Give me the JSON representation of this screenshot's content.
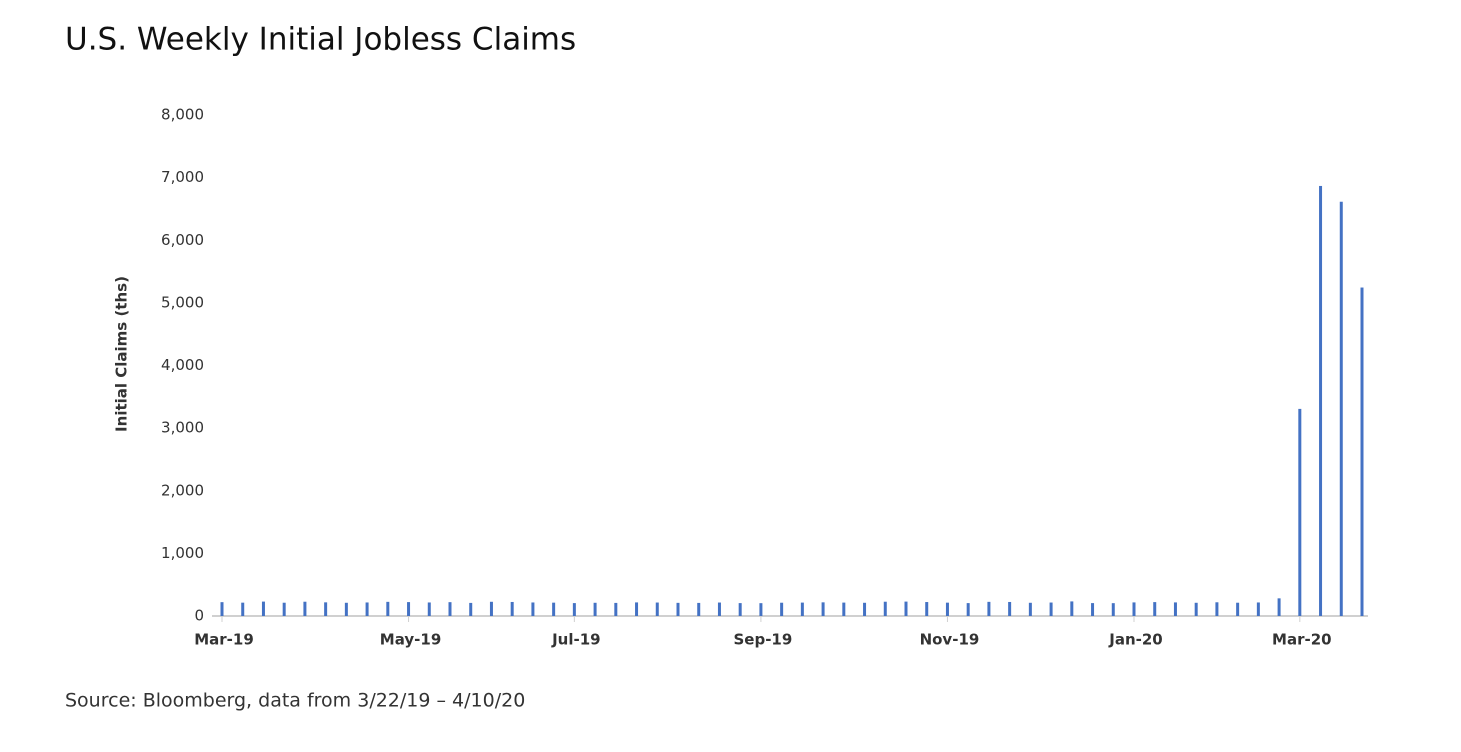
{
  "chart_data": {
    "type": "bar",
    "title": "U.S. Weekly Initial Jobless Claims",
    "y_label": "Initial Claims (ths)",
    "source": "Source: Bloomberg, data from 3/22/19 – 4/10/20",
    "categories": [
      "Mar-19",
      null,
      null,
      null,
      null,
      null,
      null,
      null,
      null,
      "May-19",
      null,
      null,
      null,
      null,
      null,
      null,
      null,
      "Jul-19",
      null,
      null,
      null,
      null,
      null,
      null,
      null,
      null,
      "Sep-19",
      null,
      null,
      null,
      null,
      null,
      null,
      null,
      null,
      "Nov-19",
      null,
      null,
      null,
      null,
      null,
      null,
      null,
      null,
      "Jan-20",
      null,
      null,
      null,
      null,
      null,
      null,
      null,
      "Mar-20",
      null,
      null,
      null
    ],
    "values": [
      221,
      213,
      230,
      212,
      228,
      218,
      211,
      216,
      226,
      222,
      216,
      221,
      209,
      227,
      224,
      216,
      213,
      206,
      211,
      209,
      217,
      215,
      210,
      209,
      215,
      206,
      205,
      212,
      214,
      218,
      214,
      211,
      228,
      230,
      223,
      213,
      206,
      226,
      224,
      211,
      215,
      233,
      206,
      205,
      217,
      222,
      217,
      211,
      219,
      212,
      216,
      282,
      3307,
      6867,
      6615,
      5245
    ],
    "color": "#4472c4",
    "ylim": [
      0,
      8000
    ],
    "yticks": [
      0,
      {
        "value": 1000,
        "label": "1,000"
      },
      {
        "value": 2000,
        "label": "2,000"
      },
      {
        "value": 3000,
        "label": "3,000"
      },
      {
        "value": 4000,
        "label": "4,000"
      },
      {
        "value": 5000,
        "label": "5,000"
      },
      {
        "value": 6000,
        "label": "6,000"
      },
      {
        "value": 7000,
        "label": "7,000"
      },
      {
        "value": 8000,
        "label": "8,000"
      }
    ],
    "grid": false
  }
}
